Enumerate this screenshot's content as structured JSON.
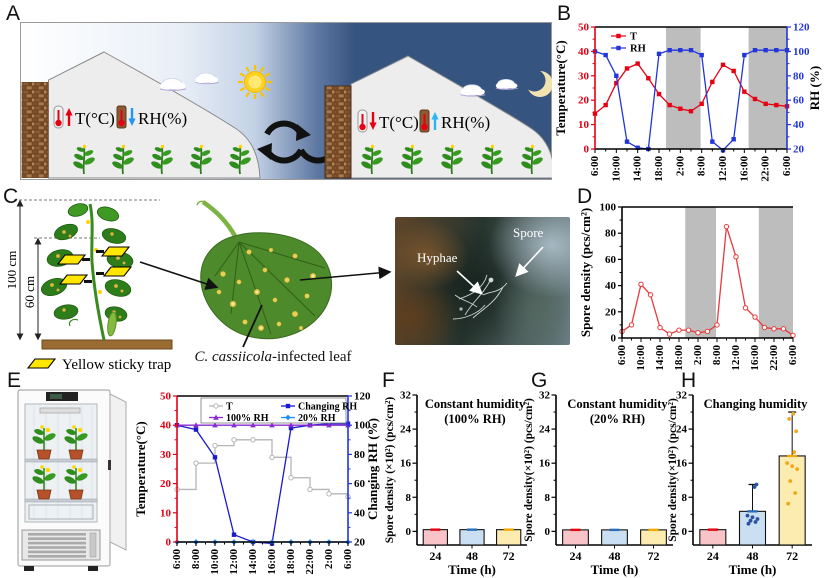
{
  "panels": {
    "a": "A",
    "b": "B",
    "c": "C",
    "d": "D",
    "e": "E",
    "f": "F",
    "g": "G",
    "h": "H"
  },
  "panelA": {
    "day": {
      "temp_label": "T(°C)",
      "rh_label": "RH(%)"
    },
    "night": {
      "temp_label": "T(°C)",
      "rh_label": "RH(%)"
    }
  },
  "panelC": {
    "height_outer": "100 cm",
    "height_inner": "60 cm",
    "trap_legend": "Yellow sticky trap",
    "leaf_caption_italic": "C. cassiicola",
    "leaf_caption_rest": "-infected leaf",
    "photo_labels": {
      "hyphae": "Hyphae",
      "spore": "Spore"
    }
  },
  "colors": {
    "temp_red": "#e60012",
    "rh_blue": "#2336d9",
    "night_band": "#bdbdbd",
    "night_sky": "#35547f",
    "purple_100rh": "#8a2bd0",
    "lightblue_20rh": "#1e90ff",
    "gray_t": "#b5b5b5",
    "spore_red": "#e8393c"
  },
  "chart_data": [
    {
      "panel": "B",
      "mount": "chart-b",
      "type": "line",
      "x_every": 2,
      "x_labels": [
        "6:00",
        "10:00",
        "14:00",
        "18:00",
        "2:00",
        "8:00",
        "12:00",
        "16:00",
        "22:00",
        "6:00"
      ],
      "night_bands": [
        [
          0.37,
          0.55
        ],
        [
          0.8,
          1.0
        ]
      ],
      "axes": {
        "left": {
          "label": "Temperature(°C)",
          "min": 0,
          "max": 50,
          "ticks": [
            0,
            10,
            20,
            30,
            40,
            50
          ],
          "spine": "#e60012",
          "tick_color": "#e60012"
        },
        "right": {
          "label": "RH (%)",
          "min": 20,
          "max": 120,
          "ticks": [
            20,
            40,
            60,
            80,
            100,
            120
          ],
          "spine": "#2336d9",
          "tick_color": "#2336d9"
        }
      },
      "series": [
        {
          "name": "T",
          "axis": "left",
          "color": "#e60012",
          "marker": "square",
          "values": [
            14.5,
            18,
            27,
            33,
            35,
            29,
            22.5,
            18,
            16.5,
            15.5,
            18.5,
            27.5,
            34.5,
            32,
            23.5,
            20.5,
            18.5,
            18,
            17.5
          ]
        },
        {
          "name": "RH",
          "axis": "right",
          "color": "#2336d9",
          "marker": "square",
          "values": [
            100,
            97,
            80,
            26,
            21,
            20,
            98,
            101,
            101,
            101,
            97,
            26,
            19,
            28,
            97,
            101,
            101,
            101,
            101
          ]
        }
      ]
    },
    {
      "panel": "D",
      "mount": "chart-d",
      "type": "line",
      "x_every": 2,
      "x_labels": [
        "6:00",
        "10:00",
        "14:00",
        "18:00",
        "2:00",
        "8:00",
        "12:00",
        "16:00",
        "22:00",
        "6:00"
      ],
      "night_bands": [
        [
          0.37,
          0.55
        ],
        [
          0.8,
          1.0
        ]
      ],
      "axes": {
        "left": {
          "label": "Spore density (pcs/cm²)",
          "min": 0,
          "max": 100,
          "ticks": [
            0,
            20,
            40,
            60,
            80,
            100
          ],
          "spine": "#000000",
          "tick_color": "#000000"
        }
      },
      "series": [
        {
          "name": "Spore density",
          "axis": "left",
          "color": "#e8393c",
          "marker": "circle-open",
          "values": [
            5,
            10,
            41,
            33,
            8,
            3,
            6,
            6,
            4,
            5,
            10,
            85,
            62,
            23,
            16,
            8,
            7,
            7,
            2
          ]
        }
      ]
    },
    {
      "panel": "E",
      "mount": "chart-e",
      "type": "line",
      "x_every": 1,
      "x_labels": [
        "6:00",
        "8:00",
        "10:00",
        "12:00",
        "14:00",
        "16:00",
        "18:00",
        "22:00",
        "2:00",
        "6:00"
      ],
      "axes": {
        "left": {
          "label": "Temperature(°C)",
          "min": 0,
          "max": 50,
          "ticks": [
            0,
            10,
            20,
            30,
            40,
            50
          ],
          "spine": "#e60012",
          "tick_color": "#e60012"
        },
        "right": {
          "label": "Changing RH (%)",
          "min": 20,
          "max": 120,
          "ticks": [
            20,
            40,
            60,
            80,
            100,
            120
          ],
          "spine": "#2336d9",
          "tick_color": "#000000"
        }
      },
      "legend_grid": [
        [
          0,
          1
        ],
        [
          3,
          2
        ]
      ],
      "series": [
        {
          "name": "T",
          "axis": "left",
          "color": "#b5b5b5",
          "marker": "circle-open",
          "step": true,
          "values": [
            18,
            27,
            33,
            35,
            35,
            29,
            22,
            18,
            16.5,
            15.5
          ]
        },
        {
          "name": "Changing RH",
          "axis": "right",
          "color": "#1a1ad0",
          "marker": "square",
          "values": [
            100,
            97,
            78,
            25,
            20,
            19,
            98,
            100,
            101,
            101
          ]
        },
        {
          "name": "20% RH",
          "axis": "right",
          "color": "#1e90ff",
          "marker": "diamond",
          "values": [
            20,
            20,
            20,
            20,
            20,
            20,
            20,
            20,
            20,
            20
          ]
        },
        {
          "name": "100% RH",
          "axis": "right",
          "color": "#8a2bd0",
          "marker": "triangle",
          "values": [
            100,
            100,
            100,
            100,
            100,
            100,
            100,
            100,
            100,
            100
          ]
        }
      ]
    },
    {
      "panel": "F",
      "mount": "chart-f",
      "type": "bar",
      "title_lines": [
        "Constant humidity",
        "(100% RH)"
      ],
      "xlabel": "Time (h)",
      "ylabel": "Spore density (×10²) (pcs/cm²)",
      "categories": [
        "24",
        "48",
        "72"
      ],
      "values": [
        0.4,
        0.4,
        0.4
      ],
      "errors": [
        0.25,
        0.25,
        0.25
      ],
      "scatter": [
        [],
        [],
        []
      ],
      "bar_fills": [
        "#f9c4c8",
        "#cbdff2",
        "#fdecb0"
      ],
      "cap_colors": [
        "#e60012",
        "#2a6ebb",
        "#f5a800"
      ],
      "dot_colors": [
        "#e60012",
        "#2a52a0",
        "#f0a81c"
      ],
      "ylim": [
        -3.2,
        32
      ],
      "yticks": [
        0,
        8,
        16,
        24,
        32
      ]
    },
    {
      "panel": "G",
      "mount": "chart-g",
      "type": "bar",
      "title_lines": [
        "Constant humidity",
        "(20% RH)"
      ],
      "xlabel": "Time (h)",
      "ylabel": "Spore density(×10²) (pcs/cm²)",
      "categories": [
        "24",
        "48",
        "72"
      ],
      "values": [
        0.35,
        0.35,
        0.35
      ],
      "errors": [
        0.25,
        0.25,
        0.25
      ],
      "scatter": [
        [],
        [],
        []
      ],
      "bar_fills": [
        "#f9c4c8",
        "#cbdff2",
        "#fdecb0"
      ],
      "cap_colors": [
        "#e60012",
        "#2a6ebb",
        "#f5a800"
      ],
      "dot_colors": [
        "#e60012",
        "#2a52a0",
        "#f0a81c"
      ],
      "ylim": [
        -3.2,
        32
      ],
      "yticks": [
        0,
        8,
        16,
        24,
        32
      ]
    },
    {
      "panel": "H",
      "mount": "chart-h",
      "type": "bar",
      "title_lines": [
        "Changing humidity"
      ],
      "xlabel": "Time (h)",
      "ylabel": "Spore density(×10²) (pcs/cm²)",
      "categories": [
        "24",
        "48",
        "72"
      ],
      "values": [
        0.4,
        4.7,
        17.7
      ],
      "errors": [
        0.25,
        6.3,
        10.3
      ],
      "scatter": [
        [],
        [
          1.8,
          2.2,
          2.5,
          2.9,
          3.3,
          3.7,
          10.4,
          11
        ],
        [
          6.5,
          9,
          11.8,
          14.6,
          15.3,
          16,
          18.6,
          23.5,
          26.4,
          27.6
        ]
      ],
      "bar_fills": [
        "#f9c4c8",
        "#cbdff2",
        "#fdecb0"
      ],
      "cap_colors": [
        "#e60012",
        "#2a6ebb",
        "#f5a800"
      ],
      "dot_colors": [
        "#e60012",
        "#2a52a0",
        "#f0a81c"
      ],
      "ylim": [
        -3.2,
        32
      ],
      "yticks": [
        0,
        8,
        16,
        24,
        32
      ]
    }
  ]
}
